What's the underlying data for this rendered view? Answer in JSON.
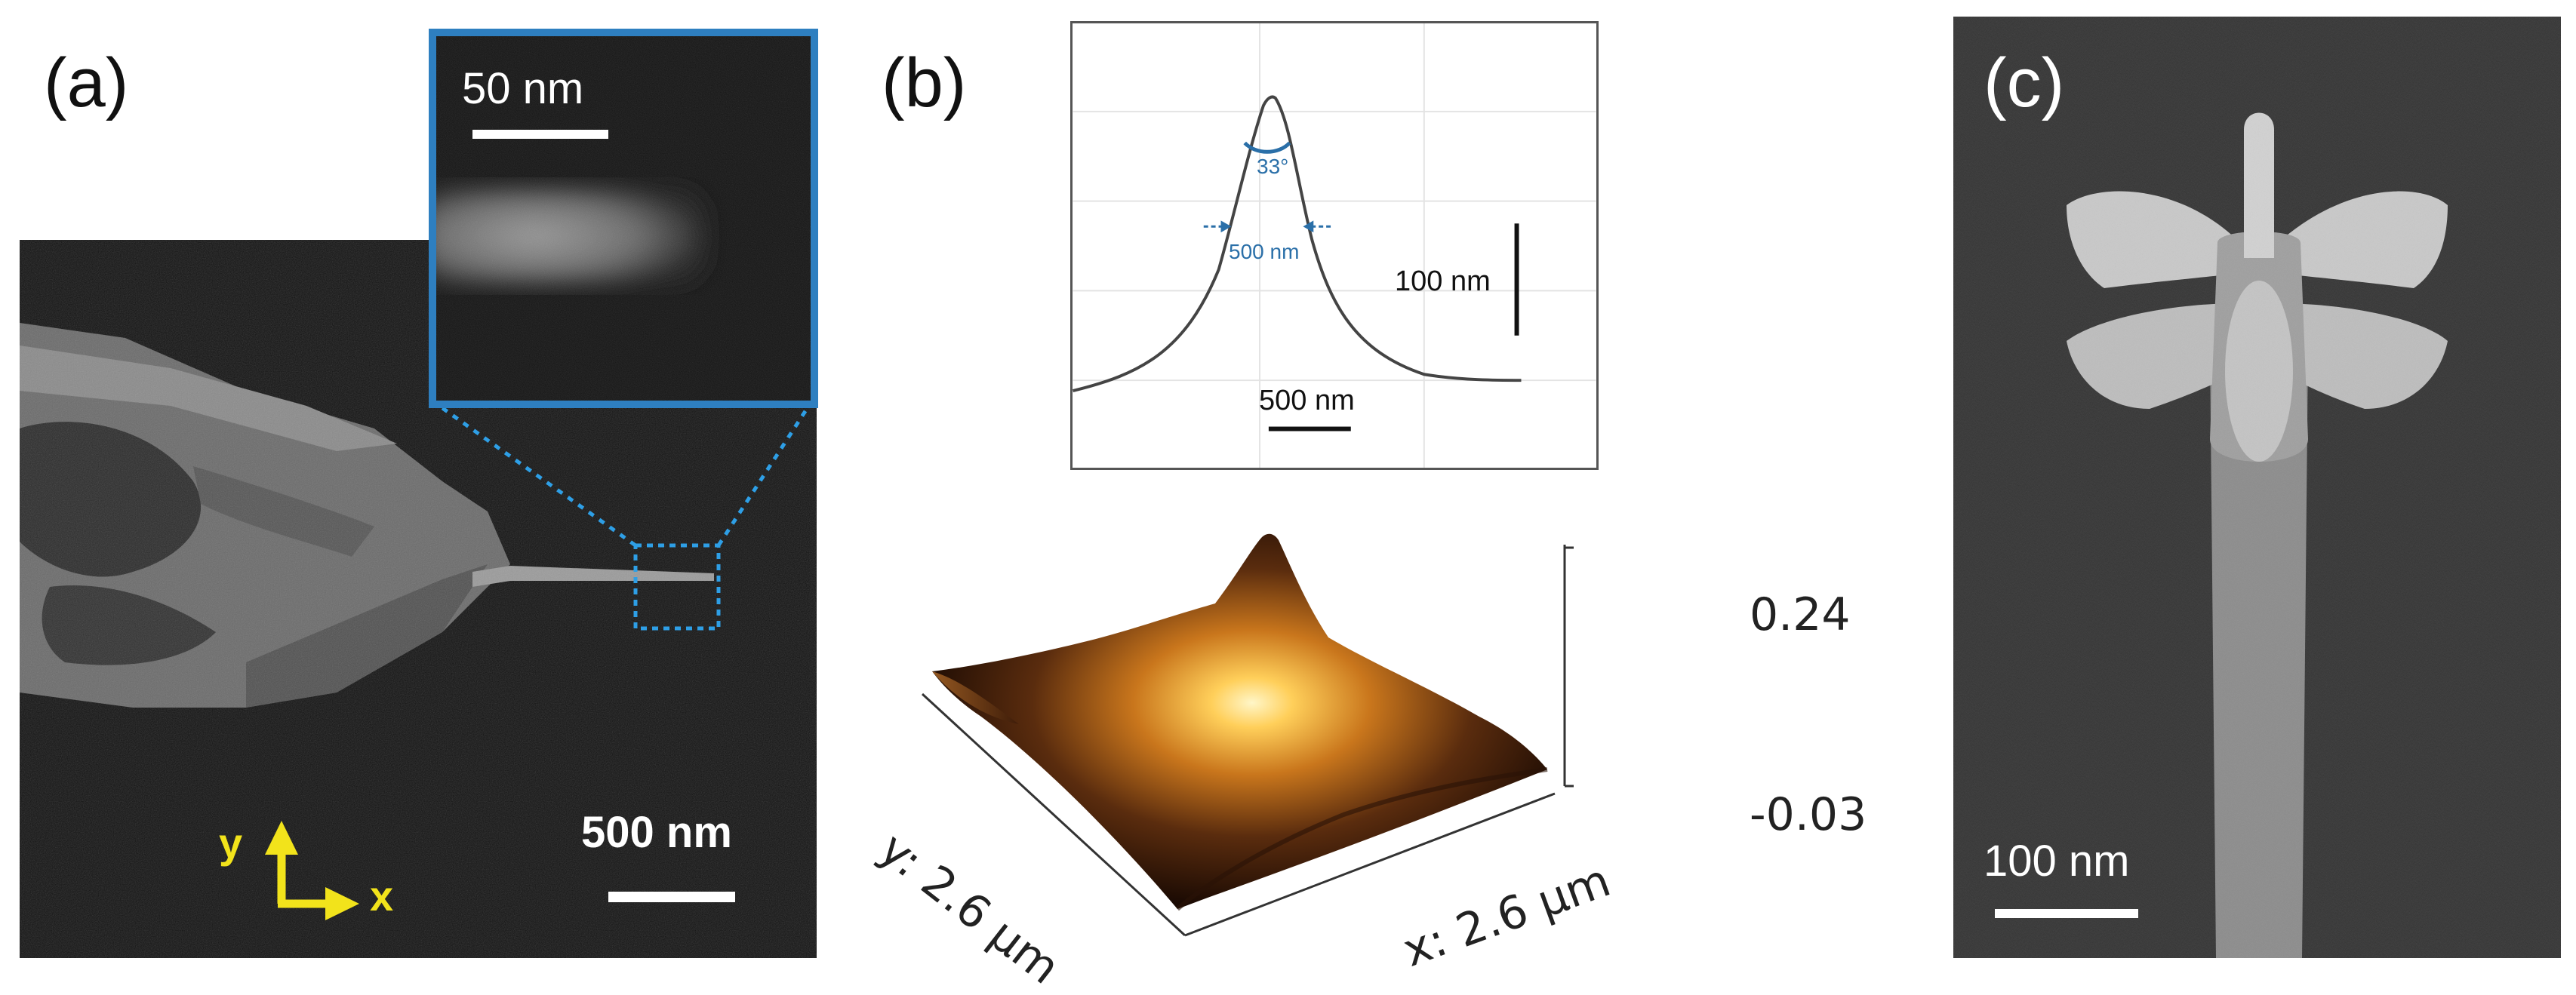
{
  "panels": {
    "a": {
      "label": "(a)",
      "inset_scale": "50 nm",
      "main_scale": "500 nm",
      "axis_y": "y",
      "axis_x": "x",
      "colors": {
        "inset_frame": "#2e7fc0",
        "zoom_box": "#2e9fe6",
        "axis_arrows": "#f2e31b"
      }
    },
    "b": {
      "label": "(b)",
      "profile": {
        "angle": "33°",
        "width_label": "500 nm",
        "vertical_scale": "100 nm",
        "horizontal_scale": "500 nm"
      },
      "surface": {
        "z_max": "0.24",
        "z_min": "-0.03",
        "y_axis": "y: 2.6 µm",
        "x_axis": "x: 2.6 µm"
      }
    },
    "c": {
      "label": "(c)",
      "scale": "100 nm"
    }
  }
}
